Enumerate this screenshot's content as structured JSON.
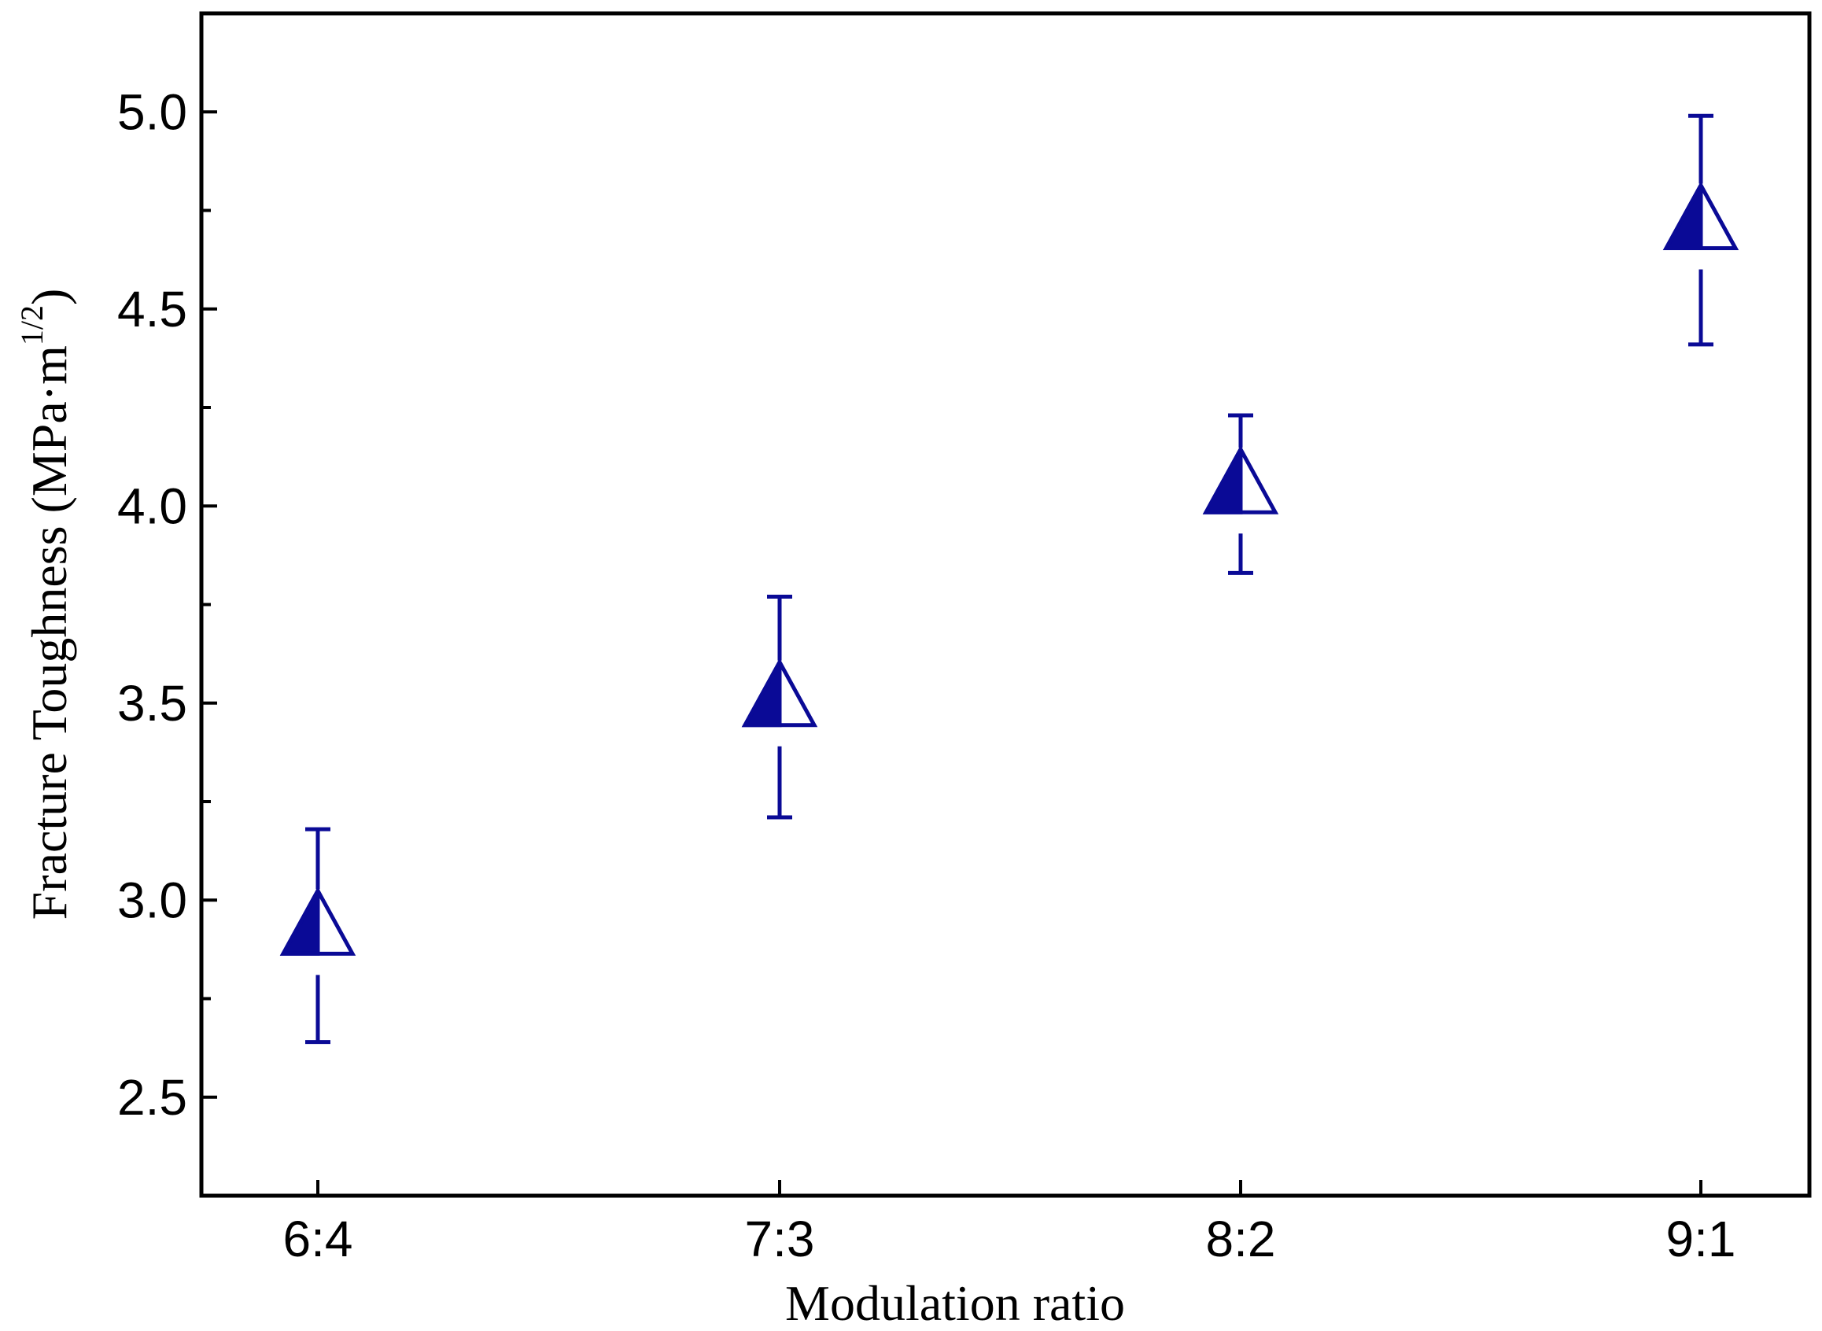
{
  "chart_data": {
    "type": "scatter",
    "title": "",
    "xlabel": "Modulation ratio",
    "ylabel": {
      "main": "Fracture Toughness (MPa·m",
      "superscript": "1/2",
      "close": ")"
    },
    "categories": [
      "6:4",
      "7:3",
      "8:2",
      "9:1"
    ],
    "series": [
      {
        "name": "Fracture Toughness",
        "values": [
          2.92,
          3.5,
          4.04,
          4.71
        ],
        "err_upper": [
          3.18,
          3.77,
          4.23,
          4.99
        ],
        "err_lower": [
          2.64,
          3.21,
          3.83,
          4.41
        ],
        "marker": "half-filled-triangle",
        "color": "#0a0a96"
      }
    ],
    "ylim": [
      2.25,
      5.25
    ],
    "yticks": [
      "2.5",
      "3.0",
      "3.5",
      "4.0",
      "4.5",
      "5.0"
    ],
    "ytick_values": [
      2.5,
      3.0,
      3.5,
      4.0,
      4.5,
      5.0
    ],
    "yminor": [
      2.75,
      3.25,
      3.75,
      4.25,
      4.75
    ],
    "grid": false,
    "legend": "none"
  }
}
